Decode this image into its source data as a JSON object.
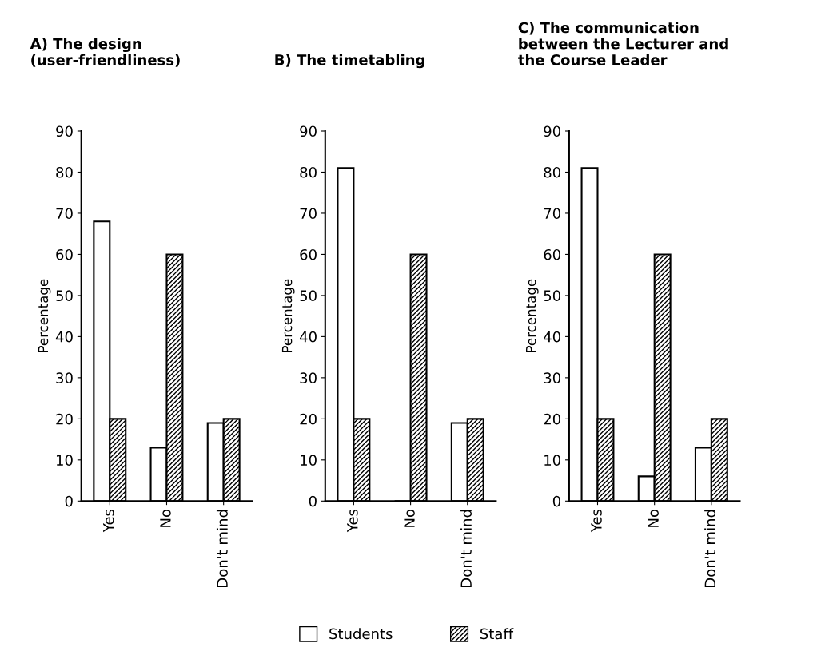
{
  "chart_data": [
    {
      "type": "bar",
      "title": "A) The design (user-friendliness)",
      "ylabel": "Percentage",
      "categories": [
        "Yes",
        "No",
        "Don't mind"
      ],
      "series": [
        {
          "name": "Students",
          "color": "#ffffff",
          "values": [
            68,
            13,
            19
          ]
        },
        {
          "name": "Staff",
          "color": "#000000",
          "values": [
            20,
            60,
            20
          ]
        }
      ],
      "ylim": [
        0,
        90
      ],
      "yticks": [
        0,
        10,
        20,
        30,
        40,
        50,
        60,
        70,
        80,
        90
      ],
      "legend": "bottom"
    },
    {
      "type": "bar",
      "title": "B) The timetabling",
      "ylabel": "Percentage",
      "categories": [
        "Yes",
        "No",
        "Don't mind"
      ],
      "series": [
        {
          "color": "#ffffff",
          "values": [
            81,
            0,
            19
          ]
        },
        {
          "color": "#000000",
          "values": [
            20,
            60,
            20
          ]
        }
      ],
      "ylim": [
        0,
        90
      ],
      "yticks": [
        0,
        10,
        20,
        30,
        40,
        50,
        60,
        70,
        80,
        90
      ]
    },
    {
      "type": "bar",
      "title": "C) The communication between the Lecturer and the Course Leader",
      "ylabel": "Percentage",
      "categories": [
        "Yes",
        "No",
        "Don't mind"
      ],
      "series": [
        {
          "color": "#ffffff",
          "values": [
            81,
            6,
            13
          ]
        },
        {
          "color": "#000000",
          "values": [
            20,
            60,
            20
          ]
        }
      ],
      "ylim": [
        0,
        90
      ],
      "yticks": [
        0,
        10,
        20,
        30,
        40,
        50,
        60,
        70,
        80,
        90
      ]
    }
  ]
}
